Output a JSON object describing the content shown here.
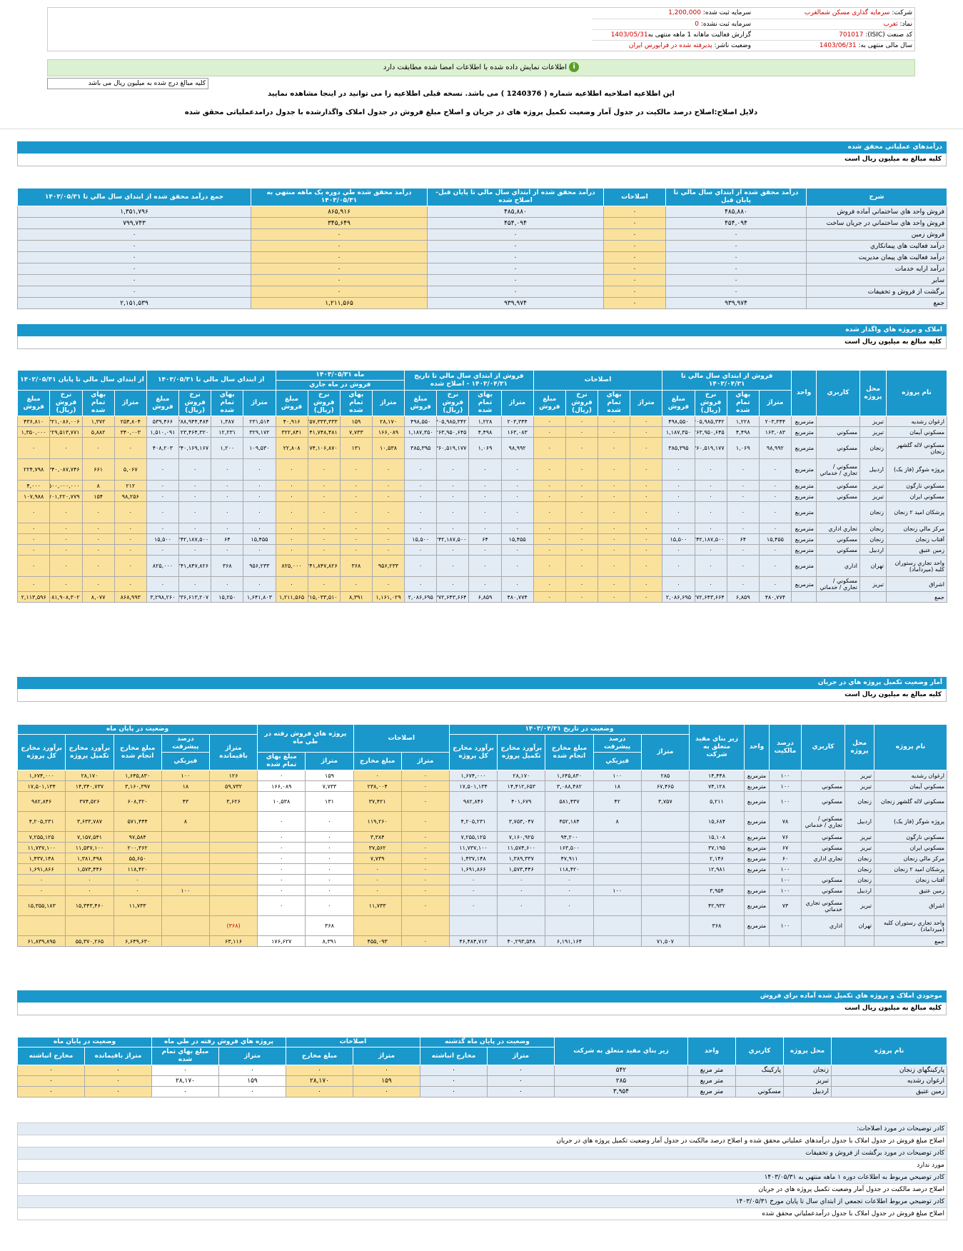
{
  "info": {
    "company_label": "شرکت:",
    "company_value": "سرمایه گذاری مسکن شمالغرب",
    "symbol_label": "نماد:",
    "symbol_value": "ثغرب",
    "isic_label": "کد صنعت (ISIC):",
    "isic_value": "701017",
    "fiscal_label": "سال مالی منتهی به:",
    "fiscal_value": "1403/06/31",
    "reg_capital_label": "سرمایه ثبت شده:",
    "reg_capital_value": "1,200,000",
    "unreg_capital_label": "سرمایه ثبت نشده:",
    "unreg_capital_value": "0",
    "report_label": "گزارش فعالیت ماهانه 1 ماهه منتهی به",
    "report_value": "1403/05/31",
    "status_label": "وضعیت ناشر:",
    "status_value": "پذیرفته شده در فرابورس ایران"
  },
  "notice": {
    "text": "اطلاعات نمایش داده شده با اطلاعات امضا شده مطابقت دارد"
  },
  "unit_select": {
    "value": "کلیه مبالغ درج شده به میلیون ریال می باشد"
  },
  "amend": {
    "line1": "این اطلاعیه اصلاحیه اطلاعیه شماره ( 1240376 ) می باشد. نسخه قبلی اطلاعیه را می توانید در اینجا مشاهده نمایید",
    "link": "اینجا",
    "line2": "دلایل اصلاح:اصلاح درصد مالکیت در جدول آمار وضعیت تکمیل پروژه های در جریان و اصلاح مبلغ فروش در جدول املاک واگذارشده با جدول درامدعملیاتی محقق شده"
  },
  "s1": {
    "title": "درآمدهاي عملياتي محقق شده",
    "unit": "کليه مبالغ به ميليون ريال است",
    "headers": [
      "شرح",
      "درآمد محقق شده از ابتداي سال مالي تا پايان قبل",
      "اصلاحات",
      "درآمد محقق شده از ابتداي سال مالي تا پايان قبل-اصلاح شده",
      "درآمد محقق شده طي دوره يک ماهه منتهي به ۱۴۰۳/۰۵/۳۱",
      "جمع درآمد محقق شده از ابتداي سال مالي تا ۱۴۰۳/۰۵/۳۱"
    ],
    "rows": [
      [
        "فروش واحد هاي ساختماني آماده فروش",
        "۴۸۵,۸۸۰",
        "۰",
        "۴۸۵,۸۸۰",
        "۸۶۵,۹۱۶",
        "۱,۳۵۱,۷۹۶"
      ],
      [
        "فروش واحد هاي ساختماني در جريان ساخت",
        "۴۵۴,۰۹۴",
        "۰",
        "۴۵۴,۰۹۴",
        "۳۴۵,۶۴۹",
        "۷۹۹,۷۴۳"
      ],
      [
        "فروش زمين",
        "۰",
        "۰",
        "۰",
        "۰",
        "۰"
      ],
      [
        "درآمد فعاليت هاي پيمانکاري",
        "۰",
        "۰",
        "۰",
        "۰",
        "۰"
      ],
      [
        "درآمد فعاليت هاي پيمان مديريت",
        "۰",
        "۰",
        "۰",
        "۰",
        "۰"
      ],
      [
        "درآمد ارايه خدمات",
        "۰",
        "۰",
        "۰",
        "۰",
        "۰"
      ],
      [
        "ساير",
        "۰",
        "۰",
        "۰",
        "۰",
        "۰"
      ],
      [
        "برگشت از فروش و تخفيفات",
        "۰",
        "۰",
        "۰",
        "۰",
        "۰"
      ],
      [
        "جمع",
        "۹۳۹,۹۷۴",
        "۰",
        "۹۳۹,۹۷۴",
        "۱,۲۱۱,۵۶۵",
        "۲,۱۵۱,۵۳۹"
      ]
    ]
  },
  "s2": {
    "title": "املاک و پروژه هاي واگذار شده",
    "unit": "کليه مبالغ به ميليون ريال است",
    "h_top": [
      "نام پروژه",
      "محل پروژه",
      "کاربري",
      "واحد",
      "فروش از ابتداي سال مالي تا ۱۴۰۳/۰۴/۳۱",
      "اصلاحات",
      "فروش از ابتداي سال مالي تا تاريخ ۱۴۰۳/۰۴/۳۱ - اصلاح شده",
      "ماه ۱۴۰۳/۰۵/۳۱",
      "از ابتداي سال مالي تا ۱۴۰۳/۰۵/۳۱",
      "از ابتداي سال مالي تا پايان ۱۴۰۲/۰۵/۳۱"
    ],
    "h_mid": "فروش در ماه جاري",
    "h_sub": [
      "متراژ",
      "بهاي تمام شده",
      "نرخ فروش (ريال)",
      "مبلغ فروش"
    ],
    "rows": [
      [
        "ارغوان رشديه",
        "تبريز",
        "",
        "مترمربع",
        "۲۰۳,۳۴۴",
        "۱,۲۲۸",
        "۴۰۵,۹۸۵,۳۴۲",
        "۴۹۸,۵۵۰",
        "۰",
        "۰",
        "۰",
        "۰",
        "۲۰۳,۳۴۴",
        "۱,۲۲۸",
        "۴۰۵,۹۸۵,۳۴۲",
        "۴۹۸,۵۵۰",
        "۲۸,۱۷۰",
        "۱۵۹",
        "۲۵۷,۳۳۳,۳۳۳",
        "۴۰,۹۱۶",
        "۲۳۱,۵۱۴",
        "۱,۳۸۷",
        "۳۸۸,۹۴۴,۴۸۴",
        "۵۳۹,۴۶۶",
        "۲۵۴,۸۰۴",
        "۱,۳۷۲",
        "۳۲۱,۰۸۶,۰۰۶",
        "۴۳۶,۸۱۰"
      ],
      [
        "مسکوني آيمان",
        "تبريز",
        "مسکوني",
        "مترمربع",
        "۱۶۳,۰۸۳",
        "۴,۴۹۸",
        "۲۶۳,۹۵۰,۶۴۵",
        "۱,۱۸۷,۳۵۰",
        "۰",
        "۰",
        "۰",
        "۰",
        "۱۶۳,۰۸۳",
        "۴,۴۹۸",
        "۲۶۳,۹۵۰,۶۴۵",
        "۱,۱۸۷,۳۵۰",
        "۱۶۶,۰۸۹",
        "۷,۷۳۳",
        "۴۱,۷۴۸,۴۸۱",
        "۳۲۲,۸۴۱",
        "۳۲۹,۱۷۲",
        "۱۲,۲۳۱",
        "۱۲۳,۴۶۴,۳۲۰",
        "۱,۵۱۰,۰۹۱",
        "۳۴۰,۰۰۳",
        "۵,۸۸۲",
        "۲۲۹,۵۱۳,۷۷۱",
        "۱,۳۵۰,۰۰۰"
      ],
      [
        "مسکوني لاله گلشهر زنجان",
        "زنجان",
        "مسکوني",
        "مترمربع",
        "۹۸,۹۹۲",
        "۱,۰۶۹",
        "۳۶۰,۵۱۹,۱۷۷",
        "۳۸۵,۳۹۵",
        "۰",
        "۰",
        "۰",
        "۰",
        "۹۸,۹۹۲",
        "۱,۰۶۹",
        "۳۶۰,۵۱۹,۱۷۷",
        "۳۸۵,۳۹۵",
        "۱۰,۵۳۸",
        "۱۳۱",
        "۱۷۴,۱۰۶,۸۷۰",
        "۲۲,۸۰۸",
        "۱۰۹,۵۳۰",
        "۱,۲۰۰",
        "۳۴۰,۱۶۹,۱۶۷",
        "۴۰۸,۲۰۳",
        "۰",
        "۰",
        "۰",
        "۰"
      ],
      [
        "پروژه شوگر (فاز يک)",
        "اردبيل",
        "مسکوني / تجاري / خدماتي",
        "مترمربع",
        "۰",
        "۰",
        "۰",
        "۰",
        "۰",
        "۰",
        "۰",
        "۰",
        "۰",
        "۰",
        "۰",
        "۰",
        "۰",
        "۰",
        "۰",
        "۰",
        "۰",
        "۰",
        "۰",
        "۰",
        "۵,۰۶۷",
        "۶۶۱",
        "۳۴۰,۰۸۷,۷۴۶",
        "۲۲۴,۷۹۸"
      ],
      [
        "مسکوني نارگون",
        "تبريز",
        "مسکوني",
        "مترمربع",
        "۰",
        "۰",
        "۰",
        "۰",
        "۰",
        "۰",
        "۰",
        "۰",
        "۰",
        "۰",
        "۰",
        "۰",
        "۰",
        "۰",
        "۰",
        "۰",
        "۰",
        "۰",
        "۰",
        "۰",
        "۲۱۲",
        "۸",
        "۵۰۰,۰۰۰,۰۰۰",
        "۴,۰۰۰"
      ],
      [
        "مسکوني ايران",
        "تبريز",
        "مسکوني",
        "مترمربع",
        "۰",
        "۰",
        "۰",
        "۰",
        "۰",
        "۰",
        "۰",
        "۰",
        "۰",
        "۰",
        "۰",
        "۰",
        "۰",
        "۰",
        "۰",
        "۰",
        "۰",
        "۰",
        "۰",
        "۰",
        "۹۸,۲۵۶",
        "۱۵۴",
        "۷۰۱,۲۲۰,۷۷۹",
        "۱۰۷,۹۸۸"
      ],
      [
        "پزشکان اميد ۲ زنجان",
        "زنجان",
        "",
        "مترمربع",
        "۰",
        "۰",
        "۰",
        "۰",
        "۰",
        "۰",
        "۰",
        "۰",
        "۰",
        "۰",
        "۰",
        "۰",
        "۰",
        "۰",
        "۰",
        "۰",
        "۰",
        "۰",
        "۰",
        "۰",
        "۰",
        "۰",
        "۰",
        "۰"
      ],
      [
        "مرکز مالي زنجان",
        "زنجان",
        "تجاري اداري",
        "مترمربع",
        "۰",
        "۰",
        "۰",
        "۰",
        "۰",
        "۰",
        "۰",
        "۰",
        "۰",
        "۰",
        "۰",
        "۰",
        "۰",
        "۰",
        "۰",
        "۰",
        "۰",
        "۰",
        "۰",
        "۰",
        "۰",
        "۰",
        "۰",
        "۰"
      ],
      [
        "آفتاب زنجان",
        "زنجان",
        "مسکوني",
        "مترمربع",
        "۱۵,۴۵۵",
        "۶۴",
        "۲۴۲,۱۸۷,۵۰۰",
        "۱۵,۵۰۰",
        "۰",
        "۰",
        "۰",
        "۰",
        "۱۵,۴۵۵",
        "۶۴",
        "۲۴۲,۱۸۷,۵۰۰",
        "۱۵,۵۰۰",
        "۰",
        "۰",
        "۰",
        "۰",
        "۱۵,۴۵۵",
        "۶۴",
        "۲۴۲,۱۸۷,۵۰۰",
        "۱۵,۵۰۰",
        "۰",
        "۰",
        "۰",
        "۰"
      ],
      [
        "زمين عتيق",
        "اردبيل",
        "مسکوني",
        "مترمربع",
        "۰",
        "۰",
        "۰",
        "۰",
        "۰",
        "۰",
        "۰",
        "۰",
        "۰",
        "۰",
        "۰",
        "۰",
        "۰",
        "۰",
        "۰",
        "۰",
        "۰",
        "۰",
        "۰",
        "۰",
        "۰",
        "۰",
        "۰",
        "۰"
      ],
      [
        "واحد تجاري رستوران کلبه (ميرداماد)",
        "تهران",
        "اداري",
        "مترمربع",
        "۰",
        "۰",
        "۰",
        "۰",
        "۰",
        "۰",
        "۰",
        "۰",
        "۰",
        "۰",
        "۰",
        "۰",
        "۹۵۶,۲۳۳",
        "۳۶۸",
        "۲,۲۴۱,۸۴۷,۸۲۶",
        "۸۲۵,۰۰۰",
        "۹۵۶,۲۳۳",
        "۳۶۸",
        "۲,۲۴۱,۸۴۷,۸۲۶",
        "۸۲۵,۰۰۰",
        "۰",
        "۰",
        "۰",
        "۰"
      ],
      [
        "اشراق",
        "تبريز",
        "مسکوني / تجاري / خدماتي",
        "مترمربع",
        "۰",
        "۰",
        "۰",
        "۰",
        "۰",
        "۰",
        "۰",
        "۰",
        "۰",
        "۰",
        "۰",
        "۰",
        "۰",
        "۰",
        "۰",
        "۰",
        "۰",
        "۰",
        "۰",
        "۰",
        "۰",
        "۰",
        "۰",
        "۰"
      ],
      [
        "جمع",
        "",
        "",
        "",
        "۴۸۰,۷۷۴",
        "۶,۸۵۹",
        "۱,۳۷۲,۶۴۳,۶۶۴",
        "۲,۰۸۶,۶۹۵",
        "۰",
        "۰",
        "۰",
        "۰",
        "۴۸۰,۷۷۴",
        "۶,۸۵۹",
        "۱,۳۷۲,۶۴۳,۶۶۴",
        "۲,۰۸۶,۶۹۵",
        "۱,۱۶۱,۰۲۹",
        "۸,۳۹۱",
        "۲,۷۱۵,۰۳۳,۵۱۰",
        "۱,۲۱۱,۵۶۵",
        "۱,۶۴۱,۸۰۳",
        "۱۵,۲۵۰",
        "۳,۳۳۶,۶۱۳,۲۰۷",
        "۳,۲۹۸,۲۶۰",
        "۸۶۸,۹۹۳",
        "۸,۰۷۷",
        "۲,۰۸۱,۹۰۸,۳۰۲",
        "۲,۱۱۳,۵۹۶"
      ]
    ]
  },
  "s3": {
    "title": "آمار وضعيت تکميل پروژه هاي در جريان",
    "unit": "کليه مبالغ به ميليون ريال است",
    "h_top": [
      "نام پروژه",
      "محل پروژه",
      "کاربري",
      "درصد مالکيت",
      "واحد",
      "زير بناي مفيد متعلق به شرکت",
      "وضعيت در تاريخ ۱۴۰۳/۰۴/۳۱",
      "اصلاحات",
      "پروژه هاي فروش رفته در طي ماه",
      "وضعيت در پايان ماه"
    ],
    "h_sub_a": [
      "متراژ",
      "درصد پيشرفت",
      "مبلغ مخارج انجام شده",
      "برآورد مخارج تکميل پروژه",
      "برآورد مخارج کل پروژه"
    ],
    "h_sub_b": [
      "متراژ",
      "مبلغ مخارج"
    ],
    "h_sub_c": [
      "متراژ",
      "مبلغ بهاي تمام شده"
    ],
    "h_sub_d": [
      "متراژ باقيمانده",
      "درصد پيشرفت",
      "مبلغ مخارج انجام شده",
      "برآورد مخارج تکميل پروژه",
      "برآورد مخارج کل پروژه"
    ],
    "phys": "فيزيکي",
    "rows": [
      [
        "ارغوان رشديه",
        "تبريز",
        "",
        "۱۰۰",
        "مترمربع",
        "۱۴,۴۴۸",
        "۲۸۵",
        "۱۰۰",
        "۱,۶۴۵,۸۳۰",
        "۲۸,۱۷۰",
        "۱,۶۷۴,۰۰۰",
        "۰",
        "۰",
        "۱۵۹",
        "۰",
        "۱۲۶",
        "۱۰۰",
        "۱,۶۴۵,۸۳۰",
        "۲۸,۱۷۰",
        "۱,۶۷۴,۰۰۰"
      ],
      [
        "مسکوني آيمان",
        "تبريز",
        "مسکوني",
        "۱۰۰",
        "مترمربع",
        "۷۴,۱۲۸",
        "۶۷,۴۶۵",
        "۱۸",
        "۳,۰۸۸,۴۸۲",
        "۱۴,۴۱۲,۶۵۳",
        "۱۷,۵۰۱,۱۳۴",
        "۰",
        "۲۳۸,۰۰۴",
        "۷,۷۳۳",
        "۱۶۶,۰۸۹",
        "۵۹,۷۳۲",
        "۱۸",
        "۳,۱۶۰,۳۹۷",
        "۱۴,۳۴۰,۷۳۷",
        "۱۷,۵۰۱,۱۳۴"
      ],
      [
        "مسکوني لاله گلشهر زنجان",
        "زنجان",
        "مسکوني",
        "۱۰۰",
        "مترمربع",
        "۵,۲۱۱",
        "۳,۷۵۷",
        "۴۲",
        "۵۸۱,۴۳۷",
        "۴۰۱,۶۷۹",
        "۹۸۲,۸۴۶",
        "۰",
        "۳۷,۴۲۱",
        "۱۳۱",
        "۱۰,۵۳۸",
        "۳,۶۲۶",
        "۴۳",
        "۶۰۸,۳۲۰",
        "۳۷۴,۵۲۶",
        "۹۸۲,۸۴۶"
      ],
      [
        "پروژه شوگر (فاز يک)",
        "اردبيل",
        "مسکوني / تجاري / خدماتي",
        "۷۸",
        "مترمربع",
        "۱۵,۶۸۴",
        "",
        "۸",
        "۴۵۲,۱۸۴",
        "۳,۷۵۳,۰۴۷",
        "۴,۲۰۵,۲۳۱",
        "۰",
        "۱۱۹,۲۶۰",
        "۰",
        "۰",
        "",
        "۸",
        "۵۷۱,۴۴۴",
        "۳,۶۳۳,۷۸۷",
        "۴,۲۰۵,۲۳۱"
      ],
      [
        "مسکوني نارگون",
        "تبريز",
        "مسکوني",
        "۷۶",
        "مترمربع",
        "۱۵,۱۰۸",
        "",
        "",
        "۹۴,۲۰۰",
        "۷,۱۶۰,۹۲۵",
        "۷,۲۵۵,۱۲۵",
        "۰",
        "۳,۳۸۴",
        "۰",
        "۰",
        "",
        "",
        "۹۷,۵۸۴",
        "۷,۱۵۷,۵۴۱",
        "۷,۲۵۵,۱۲۵"
      ],
      [
        "مسکوني ايران",
        "تبريز",
        "مسکوني",
        "۶۷",
        "مترمربع",
        "۳۷,۱۹۵",
        "",
        "",
        "۱۶۳,۵۰۰",
        "۱۱,۵۷۴,۶۰۰",
        "۱۱,۷۳۷,۱۰۰",
        "۰",
        "۳۷,۵۶۲",
        "۰",
        "۰",
        "",
        "",
        "۲۰۰,۳۶۲",
        "۱۱,۵۳۷,۱۰۰",
        "۱۱,۷۳۷,۱۰۰"
      ],
      [
        "مرکز مالي زنجان",
        "زنجان",
        "تجاري اداري",
        "۶۰",
        "مترمربع",
        "۲,۱۴۶",
        "",
        "",
        "۴۷,۹۱۱",
        "۱,۳۸۹,۳۳۷",
        "۱,۴۳۷,۱۴۸",
        "۰",
        "۷,۷۳۹",
        "۰",
        "۰",
        "",
        "",
        "۵۵,۶۵۰",
        "۱,۳۸۱,۴۹۸",
        "۱,۴۳۷,۱۴۸"
      ],
      [
        "پزشکان اميد ۲ زنجان",
        "زنجان",
        "",
        "۱۰۰",
        "مترمربع",
        "۱۲,۹۸۱",
        "",
        "",
        "۱۱۸,۴۲۰",
        "۱,۵۷۳,۴۴۶",
        "۱,۶۹۱,۸۶۶",
        "۰",
        "۰",
        "۰",
        "۰",
        "",
        "",
        "۱۱۸,۴۲۰",
        "۱,۵۷۳,۴۴۶",
        "۱,۶۹۱,۸۶۶"
      ],
      [
        "آفتاب زنجان",
        "زنجان",
        "مسکوني",
        "۱۰۰",
        "",
        "",
        "",
        "",
        "۰",
        "۰",
        "۰",
        "۰",
        "۰",
        "۰",
        "۰",
        "",
        "",
        "۰",
        "۰",
        "۰"
      ],
      [
        "زمين عتيق",
        "اردبيل",
        "مسکوني",
        "۱۰۰",
        "مترمربع",
        "۳,۹۵۴",
        "",
        "۱۰۰",
        "۰",
        "۰",
        "۰",
        "۰",
        "۰",
        "۰",
        "۰",
        "",
        "۱۰۰",
        "۰",
        "۰",
        "۰"
      ],
      [
        "اشراق",
        "تبريز",
        "مسکوني تجاري خدماتي",
        "۷۳",
        "مترمربع",
        "۴۲,۹۳۲",
        "",
        "",
        "۰",
        "۰",
        "۰",
        "۰",
        "۱۱,۷۳۳",
        "۰",
        "۰",
        "",
        "",
        "۱۱,۷۳۳",
        "۱۵,۳۴۳,۴۶۰",
        "۱۵,۳۵۵,۱۸۳"
      ],
      [
        "واحد تجاري رستوران کلبه (ميرداماد)",
        "تهران",
        "اداري",
        "۱۰۰",
        "مترمربع",
        "۳۶۸",
        "",
        "",
        "",
        "",
        "",
        "",
        "",
        "۳۶۸",
        "",
        "(۳۶۸)",
        "",
        "",
        "",
        ""
      ],
      [
        "جمع",
        "",
        "",
        "",
        "",
        "",
        "۷۱,۵۰۷",
        "",
        "۶,۱۹۱,۱۶۴",
        "۴۰,۲۹۳,۵۴۸",
        "۴۶,۴۸۴,۷۱۲",
        "۰",
        "۴۵۵,۰۹۳",
        "۸,۳۹۱",
        "۱۷۶,۶۲۷",
        "۶۳,۱۱۶",
        "",
        "۶,۶۴۹,۶۳۰",
        "۵۵,۳۷۰,۲۶۵",
        "۶۱,۸۳۹,۸۹۵"
      ]
    ]
  },
  "s4": {
    "title": "موجودي املاک و پروژه هاي تکميل شده آماده براي فروش",
    "unit": "کليه مبالغ به ميليون ريال است",
    "h_top": [
      "نام پروژه",
      "محل پروژه",
      "کاربري",
      "واحد",
      "زير بناي مفيد متعلق به شرکت",
      "وضعيت در پايان ماه گذشته",
      "اصلاحات",
      "پروژه هاي فروش رفته در طي ماه",
      "وضعيت در پايان ماه"
    ],
    "h_sub": [
      "متراژ",
      "مخارج انباشته",
      "متراژ",
      "مبلغ مخارج",
      "متراژ",
      "مبلغ بهاي تمام شده",
      "متراژ باقيمانده",
      "مخارج انباشته"
    ],
    "rows": [
      [
        "پارکينگهاي زنجان",
        "زنجان",
        "پارکينگ",
        "متر مربع",
        "۵۴۲",
        "۰",
        "۰",
        "۰",
        "۰",
        "۰",
        "۰",
        "۰",
        "۰"
      ],
      [
        "ارغوان رشديه",
        "تبريز",
        "",
        "متر مربع",
        "۲۸۵",
        "۰",
        "۰",
        "۱۵۹",
        "۲۸,۱۷۰",
        "۱۵۹",
        "۲۸,۱۷۰",
        "۰",
        "۰"
      ],
      [
        "زمين عتيق",
        "اردبيل",
        "مسکوني",
        "متر مربع",
        "۳,۹۵۴",
        "۰",
        "۰",
        "۰",
        "۰",
        "۰",
        "۰",
        "۰",
        "۰"
      ]
    ]
  },
  "notes": [
    "کادر توضيحات در مورد اصلاحات:",
    "اصلاح مبلغ فروش در جدول املاک با جدول درآمدهاي عملياتي محقق شده و اصلاح درصد مالکيت در جدول آمار وضعيت تکميل پروژه هاي در جريان",
    "کادر توضيحات در مورد برگشت از فروش و تخفيفات",
    "مورد ندارد",
    "کادر توضيحي مربوط به اطلاعات دوره ۱ ماهه منتهي به ۱۴۰۳/۰۵/۳۱",
    "اصلاح درصد مالکيت در جدول آمار وضعيت تکميل پروژه هاي در جريان",
    "کادر توضيحي مربوط اطلاعات تجمعي از ابتداي سال تا پايان مورخ ۱۴۰۳/۰۵/۳۱",
    "اصلاح مبلغ فروش در جدول املاک با جدول درآمدعملياتي محقق شده"
  ],
  "colors": {
    "header_blue": "#1a98cb",
    "row_blue": "#e3ecf5",
    "row_yellow": "#fbe29c",
    "notice_green": "#dcf0d2"
  }
}
